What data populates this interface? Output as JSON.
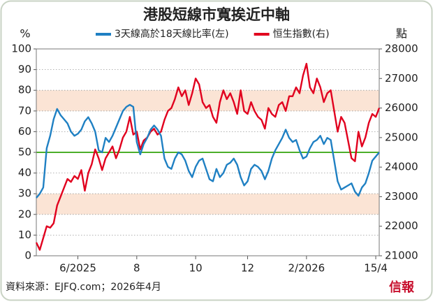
{
  "chart_data": {
    "type": "line",
    "title": "港股短線市寬挨近中軸",
    "left_unit": "%",
    "right_unit": "點",
    "xlim": [
      0,
      99
    ],
    "xticks": [
      {
        "value": 12,
        "label": "6/2025"
      },
      {
        "value": 29,
        "label": "8"
      },
      {
        "value": 46,
        "label": "10"
      },
      {
        "value": 61,
        "label": "12"
      },
      {
        "value": 78,
        "label": "2/2026"
      },
      {
        "value": 98,
        "label": "15/4"
      }
    ],
    "ylim": [
      0,
      100
    ],
    "yticks": [
      0,
      10,
      20,
      30,
      40,
      50,
      60,
      70,
      80,
      90,
      100
    ],
    "y2lim": [
      21000,
      28000
    ],
    "y2ticks": [
      21000,
      22000,
      23000,
      24000,
      25000,
      26000,
      27000,
      28000
    ],
    "bands": [
      [
        20,
        30
      ],
      [
        70,
        80
      ]
    ],
    "band_color": "#fbe4d5",
    "reference_line": 50,
    "reference_color": "#4caf2a",
    "grid": true,
    "series": [
      {
        "name": "3天線高於18天線比率(左)",
        "color": "#1f80c3",
        "axis": "y",
        "values": [
          28,
          30,
          33,
          52,
          58,
          66,
          71,
          68,
          66,
          64,
          60,
          58,
          59,
          61,
          65,
          67,
          64,
          60,
          51,
          50,
          57,
          55,
          58,
          62,
          66,
          70,
          72,
          73,
          72,
          55,
          49,
          54,
          57,
          61,
          63,
          61,
          58,
          47,
          43,
          42,
          47,
          50,
          49,
          46,
          41,
          38,
          43,
          46,
          47,
          42,
          37,
          36,
          42,
          38,
          40,
          44,
          45,
          47,
          44,
          38,
          34,
          36,
          42,
          44,
          43,
          41,
          37,
          41,
          47,
          51,
          54,
          57,
          61,
          57,
          55,
          56,
          51,
          47,
          48,
          52,
          55,
          56,
          58,
          54,
          57,
          56,
          46,
          36,
          32,
          33,
          34,
          35,
          31,
          29,
          33,
          35,
          40,
          46,
          48,
          50
        ]
      },
      {
        "name": "恒生指數(右)",
        "color": "#e1001e",
        "axis": "y2",
        "values": [
          21450,
          21200,
          21600,
          22000,
          21950,
          22100,
          22700,
          23000,
          23300,
          23600,
          23500,
          23700,
          23600,
          23900,
          23200,
          23800,
          24100,
          24600,
          24300,
          23900,
          24300,
          24500,
          24700,
          24300,
          24600,
          25000,
          25200,
          25700,
          25100,
          25200,
          24600,
          24900,
          25000,
          25200,
          25300,
          25100,
          25200,
          25600,
          25900,
          26000,
          26300,
          26700,
          26400,
          26600,
          26100,
          26500,
          27000,
          26800,
          26200,
          26000,
          26100,
          25700,
          25500,
          26200,
          26600,
          26300,
          26500,
          26200,
          25800,
          26600,
          25900,
          25800,
          26200,
          25900,
          25700,
          25600,
          25300,
          26000,
          25800,
          25700,
          26100,
          26200,
          25900,
          26400,
          26400,
          26700,
          26500,
          27100,
          27500,
          26700,
          26500,
          27000,
          26700,
          26200,
          26500,
          26600,
          25900,
          25200,
          25700,
          25500,
          24900,
          24300,
          24200,
          25200,
          24700,
          25000,
          25500,
          25800,
          25700,
          26000
        ]
      }
    ],
    "source": "資料來源：EJFQ.com；2026年4月",
    "logo": "信報"
  }
}
